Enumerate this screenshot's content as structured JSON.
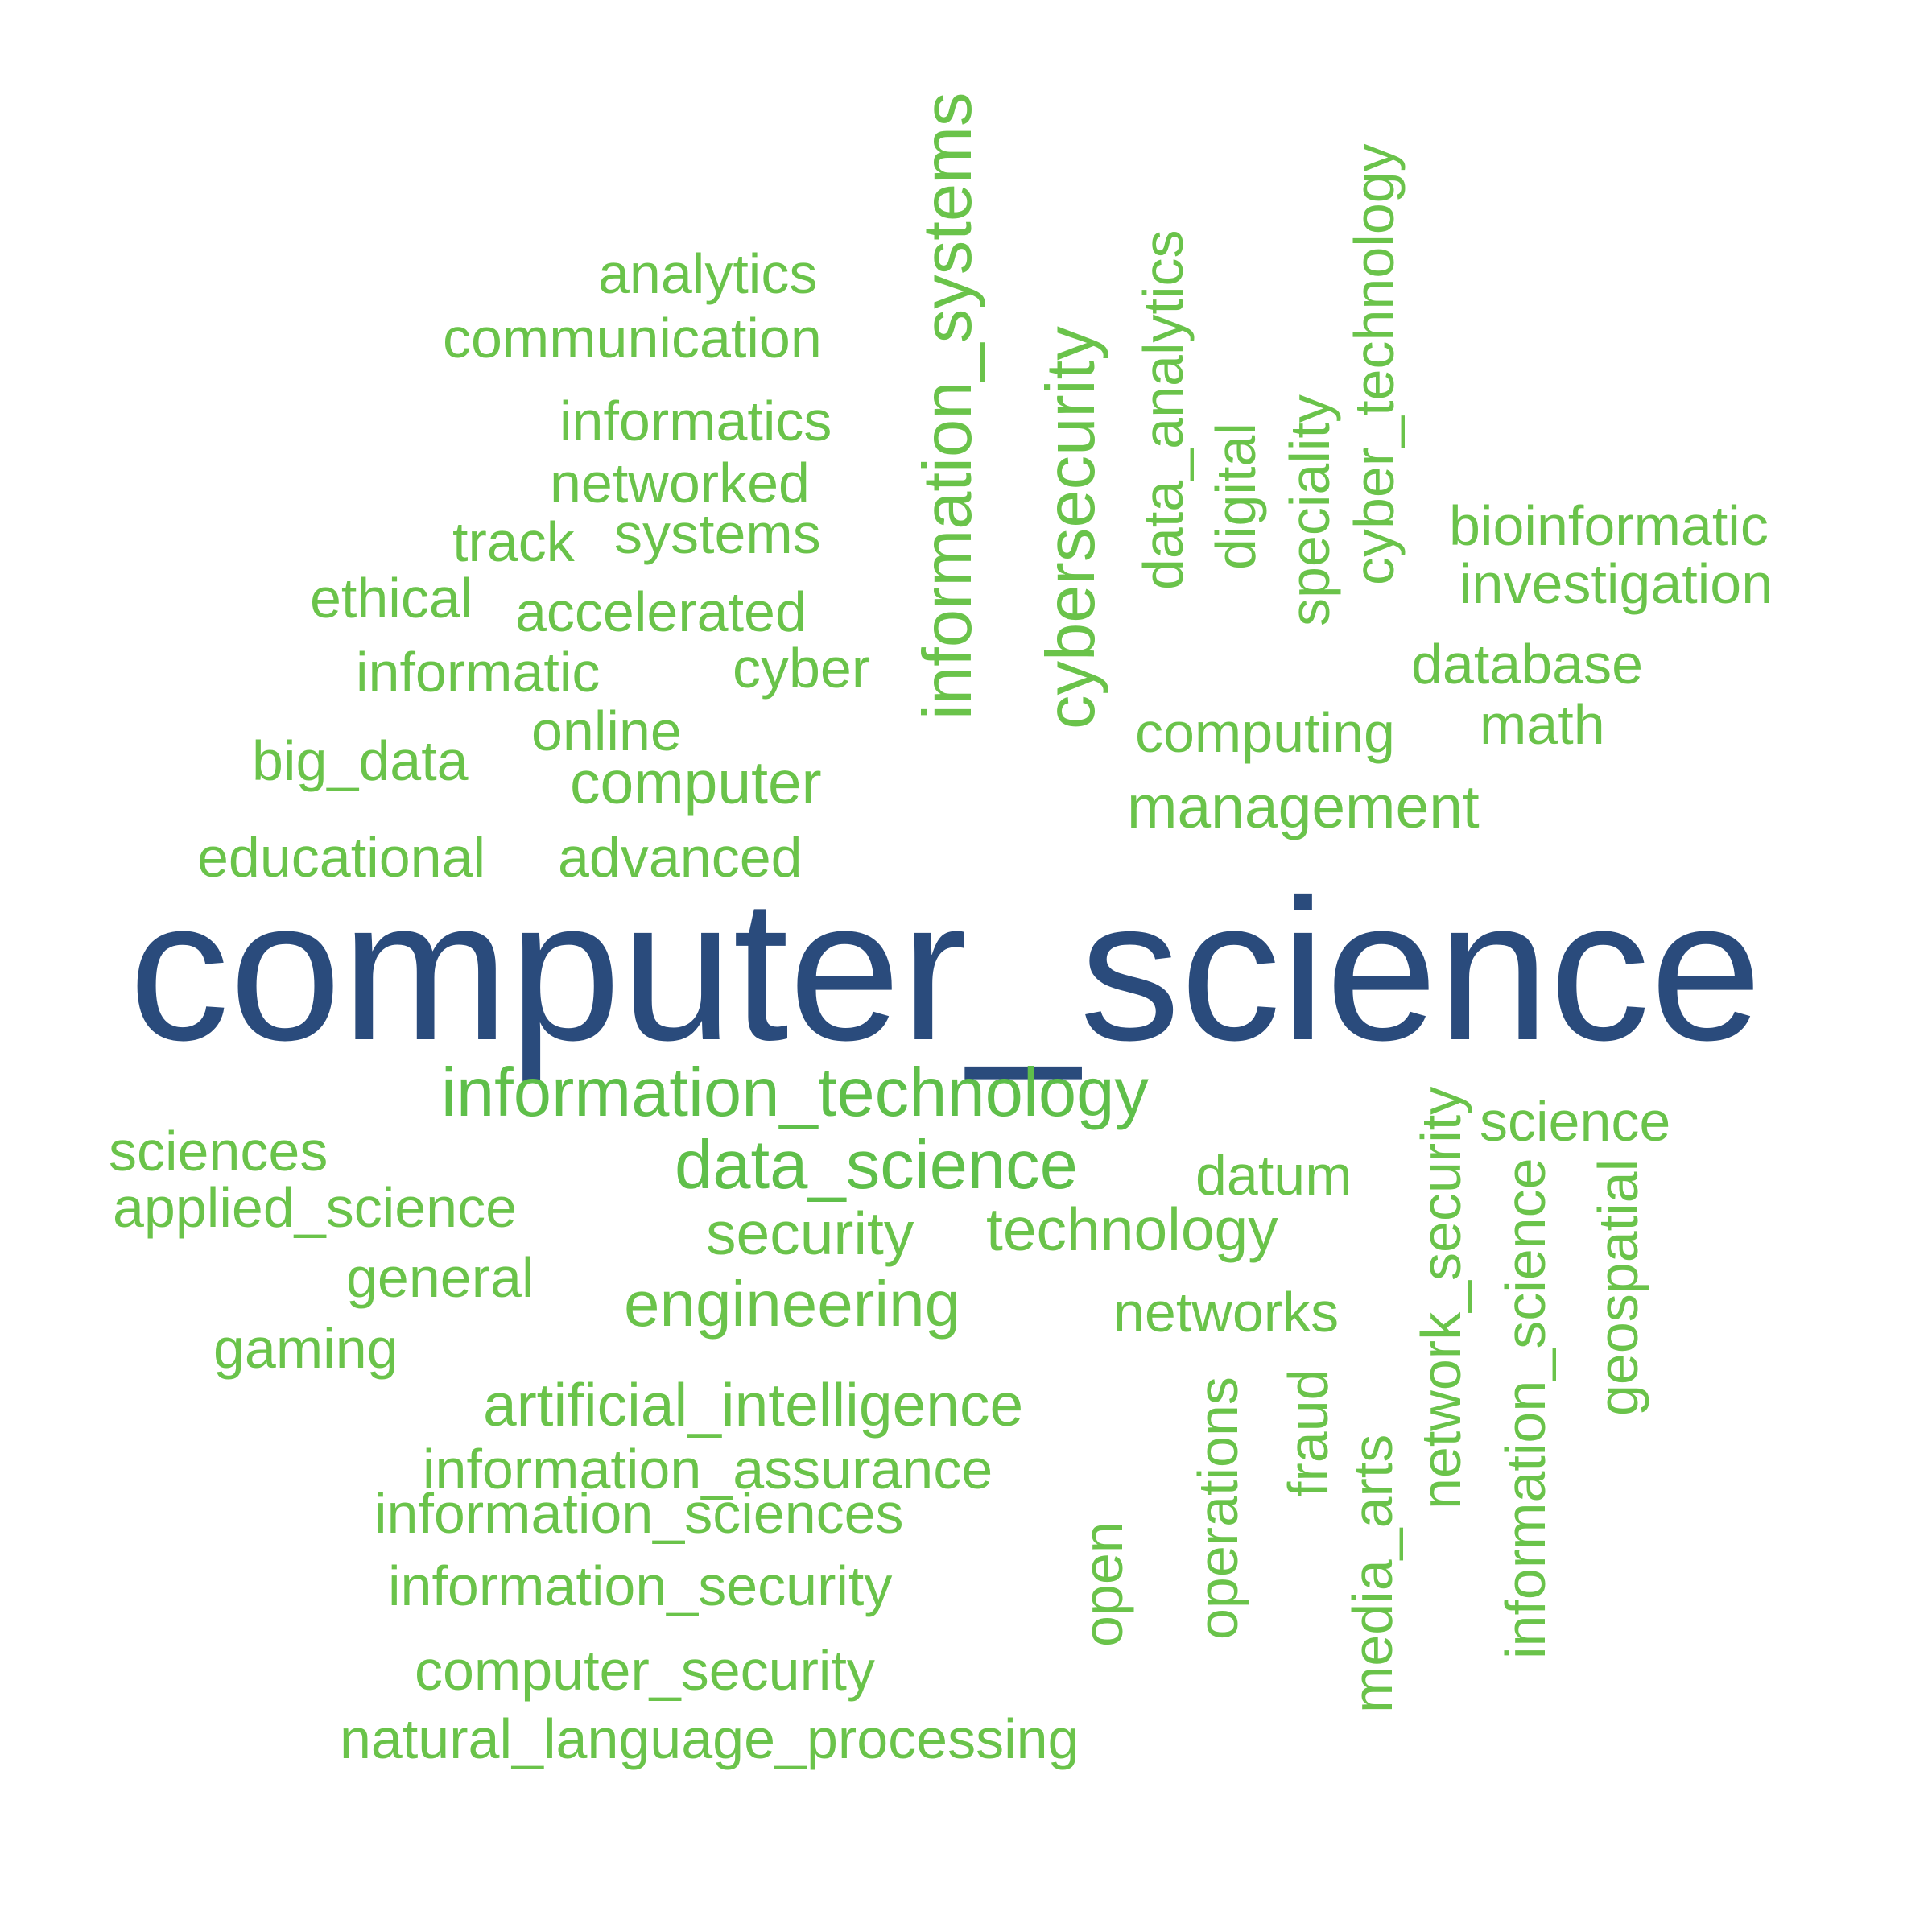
{
  "palette": {
    "primary": "#2a4b7c",
    "green": "#6ac34a"
  },
  "words": [
    {
      "text": "computer_science",
      "color": "#2a4b7c"
    },
    {
      "text": "information_technology",
      "color": "#5fbf4a"
    },
    {
      "text": "data_science",
      "color": "#5fbf4a"
    },
    {
      "text": "information_systems",
      "color": "#6ac34a"
    },
    {
      "text": "cybersecurity",
      "color": "#6ac34a"
    },
    {
      "text": "analytics",
      "color": "#6ac34a"
    },
    {
      "text": "communication",
      "color": "#6ac34a"
    },
    {
      "text": "informatics",
      "color": "#6ac34a"
    },
    {
      "text": "networked",
      "color": "#6ac34a"
    },
    {
      "text": "track",
      "color": "#6ac34a"
    },
    {
      "text": "systems",
      "color": "#6ac34a"
    },
    {
      "text": "ethical",
      "color": "#6ac34a"
    },
    {
      "text": "accelerated",
      "color": "#6ac34a"
    },
    {
      "text": "informatic",
      "color": "#6ac34a"
    },
    {
      "text": "cyber",
      "color": "#6ac34a"
    },
    {
      "text": "online",
      "color": "#6ac34a"
    },
    {
      "text": "big_data",
      "color": "#6ac34a"
    },
    {
      "text": "computer",
      "color": "#6ac34a"
    },
    {
      "text": "educational",
      "color": "#6ac34a"
    },
    {
      "text": "advanced",
      "color": "#6ac34a"
    },
    {
      "text": "data_analytics",
      "color": "#6ac34a"
    },
    {
      "text": "digital",
      "color": "#6ac34a"
    },
    {
      "text": "speciality",
      "color": "#6ac34a"
    },
    {
      "text": "cyber_technology",
      "color": "#6ac34a"
    },
    {
      "text": "bioinformatic",
      "color": "#6ac34a"
    },
    {
      "text": "investigation",
      "color": "#6ac34a"
    },
    {
      "text": "database",
      "color": "#6ac34a"
    },
    {
      "text": "computing",
      "color": "#6ac34a"
    },
    {
      "text": "math",
      "color": "#6ac34a"
    },
    {
      "text": "management",
      "color": "#6ac34a"
    },
    {
      "text": "sciences",
      "color": "#6ac34a"
    },
    {
      "text": "applied_science",
      "color": "#6ac34a"
    },
    {
      "text": "general",
      "color": "#6ac34a"
    },
    {
      "text": "gaming",
      "color": "#6ac34a"
    },
    {
      "text": "security",
      "color": "#6ac34a"
    },
    {
      "text": "technology",
      "color": "#6ac34a"
    },
    {
      "text": "engineering",
      "color": "#6ac34a"
    },
    {
      "text": "datum",
      "color": "#6ac34a"
    },
    {
      "text": "networks",
      "color": "#6ac34a"
    },
    {
      "text": "science",
      "color": "#6ac34a"
    },
    {
      "text": "artificial_intelligence",
      "color": "#6ac34a"
    },
    {
      "text": "information_assurance",
      "color": "#6ac34a"
    },
    {
      "text": "information_sciences",
      "color": "#6ac34a"
    },
    {
      "text": "information_security",
      "color": "#6ac34a"
    },
    {
      "text": "computer_security",
      "color": "#6ac34a"
    },
    {
      "text": "natural_language_processing",
      "color": "#6ac34a"
    },
    {
      "text": "open",
      "color": "#6ac34a"
    },
    {
      "text": "operations",
      "color": "#6ac34a"
    },
    {
      "text": "fraud",
      "color": "#6ac34a"
    },
    {
      "text": "media_arts",
      "color": "#6ac34a"
    },
    {
      "text": "network_security",
      "color": "#6ac34a"
    },
    {
      "text": "information_science",
      "color": "#6ac34a"
    },
    {
      "text": "geospatial",
      "color": "#6ac34a"
    }
  ]
}
